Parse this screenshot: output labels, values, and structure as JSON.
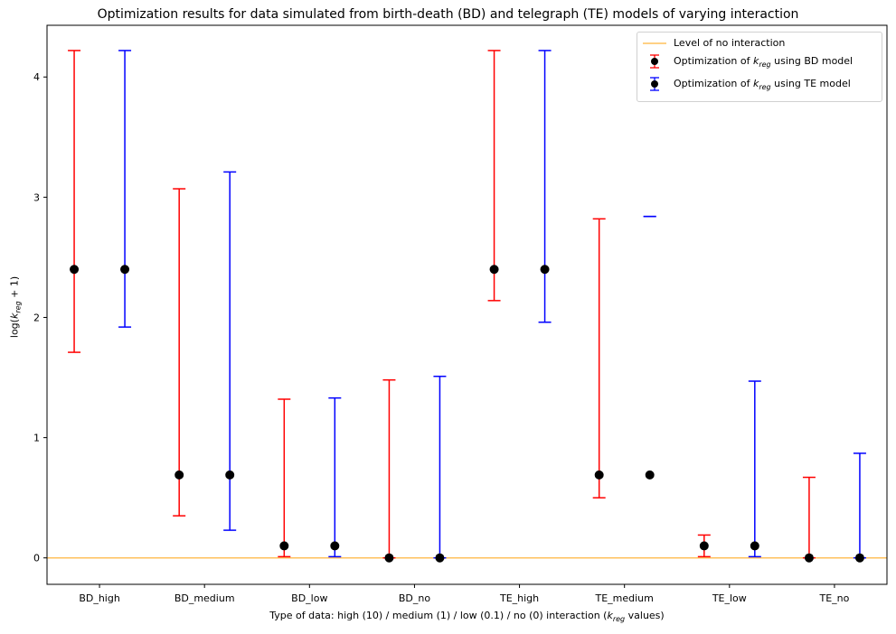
{
  "chart_data": {
    "type": "scatter",
    "title": "Optimization results for data simulated from birth-death (BD) and telegraph (TE) models of varying interaction",
    "xlabel": "Type of data: high (10) / medium (1) / low (0.1) / no (0) interaction (k_reg values)",
    "ylabel": "log(k_reg + 1)",
    "categories": [
      "BD_high",
      "BD_medium",
      "BD_low",
      "BD_no",
      "TE_high",
      "TE_medium",
      "TE_low",
      "TE_no"
    ],
    "ylim": [
      -0.22,
      4.43
    ],
    "yticks": [
      0,
      1,
      2,
      3,
      4
    ],
    "grid": false,
    "legend_position": "top-right",
    "series": [
      {
        "name": "Optimization of k_reg using BD model",
        "color": "#ff0000",
        "point_color": "#000000",
        "values": [
          2.4,
          0.69,
          0.1,
          0.0,
          2.4,
          0.69,
          0.1,
          0.0
        ],
        "lower": [
          1.71,
          0.35,
          0.01,
          0.0,
          2.14,
          0.5,
          0.01,
          0.0
        ],
        "upper": [
          4.22,
          3.07,
          1.32,
          1.48,
          4.22,
          2.82,
          0.19,
          0.67
        ]
      },
      {
        "name": "Optimization of k_reg using TE model",
        "color": "#0000ff",
        "point_color": "#000000",
        "values": [
          2.4,
          0.69,
          0.1,
          0.0,
          2.4,
          0.69,
          0.1,
          0.0
        ],
        "lower": [
          1.92,
          0.23,
          0.01,
          0.0,
          1.96,
          2.84,
          0.01,
          0.0
        ],
        "upper": [
          4.22,
          3.21,
          1.33,
          1.51,
          4.22,
          2.84,
          1.47,
          0.87
        ]
      }
    ],
    "reference_line": {
      "name": "Level of no interaction",
      "y": 0,
      "color": "#ffc05c"
    }
  },
  "legend": {
    "ref_label": "Level of no interaction",
    "bd_prefix": "Optimization of ",
    "bd_suffix": " using BD model",
    "te_prefix": "Optimization of ",
    "te_suffix": " using TE model",
    "k": "k",
    "reg": "reg"
  },
  "labels": {
    "xlabel_prefix": "Type of data: high (10) / medium (1) / low (0.1) / no (0) interaction (",
    "xlabel_suffix": " values)",
    "ylabel_prefix": "log(",
    "ylabel_suffix": " + 1)"
  }
}
